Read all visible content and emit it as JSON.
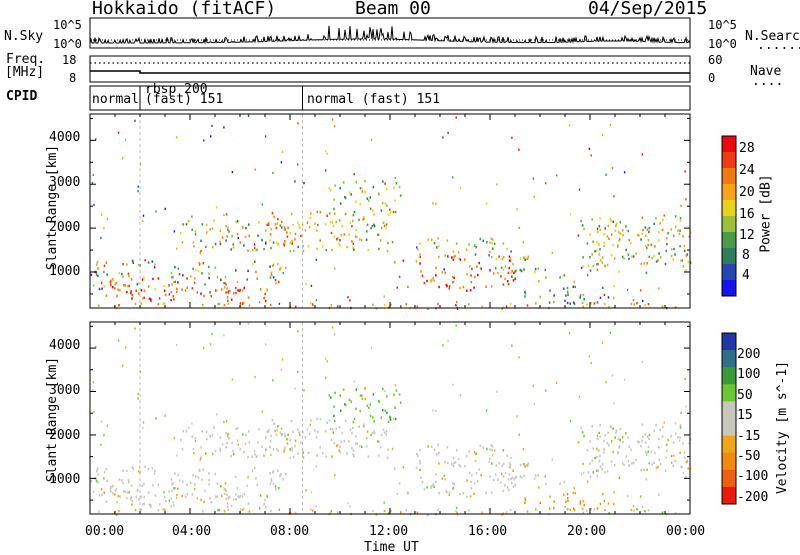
{
  "header": {
    "station": "Hokkaido (fitACF)",
    "beam": "Beam 00",
    "date": "04/Sep/2015"
  },
  "nsky_panel": {
    "label": "N.Sky",
    "left_tick_top": "10^5",
    "left_tick_bottom": "10^0",
    "right_tick_top": "10^5",
    "right_tick_bottom": "10^0",
    "right_legend": "N.Search",
    "right_legend_line": "........"
  },
  "freq_panel": {
    "label_line1": "Freq.",
    "label_line2": "[MHz]",
    "left_tick_top": "18",
    "left_tick_bottom": "8",
    "right_tick_top": "60",
    "right_tick_bottom": "0",
    "right_legend": "Nave",
    "right_legend_line": "...."
  },
  "cpid_panel": {
    "label": "CPID",
    "segments": [
      "normal",
      "rbsp 200",
      "(fast) 151",
      "normal (fast) 151"
    ]
  },
  "chart_data": [
    {
      "type": "heatmap",
      "title": "",
      "ylabel": "Slant Range [km]",
      "xlabel": "",
      "x_ticks": [],
      "y_ticks": [
        "1000",
        "2000",
        "3000",
        "4000"
      ],
      "ylim": [
        180,
        4600
      ],
      "colorbar": {
        "label": "Power [dB]",
        "ticks": [
          "4",
          "8",
          "12",
          "16",
          "20",
          "24",
          "28"
        ],
        "colors": [
          "#1414e6",
          "#2747b0",
          "#2f7d5a",
          "#4a9c4a",
          "#99c23a",
          "#e8d21e",
          "#f7a21b",
          "#f07a13",
          "#ec3d15",
          "#e80b0b"
        ]
      }
    },
    {
      "type": "heatmap",
      "title": "",
      "ylabel": "Slant Range [km]",
      "xlabel": "Time UT",
      "x_ticks": [
        "00:00",
        "04:00",
        "08:00",
        "12:00",
        "16:00",
        "20:00",
        "00:00"
      ],
      "y_ticks": [
        "1000",
        "2000",
        "3000",
        "4000"
      ],
      "ylim": [
        180,
        4600
      ],
      "colorbar": {
        "label": "Velocity [m s^-1]",
        "ticks": [
          "200",
          "100",
          "50",
          "15",
          "-15",
          "-50",
          "-100",
          "-200"
        ],
        "colors": [
          "#2336a6",
          "#2f6f87",
          "#3a9a3a",
          "#6cc832",
          "#c7c7be",
          "#c7c7be",
          "#f0a51c",
          "#f28a12",
          "#ee6010",
          "#e81a0a"
        ]
      }
    }
  ]
}
